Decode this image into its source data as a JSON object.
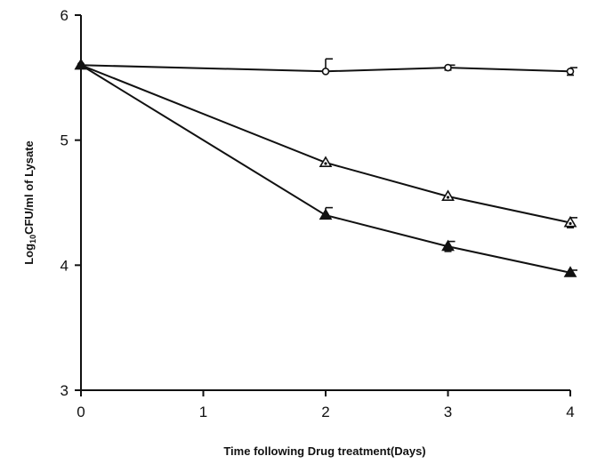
{
  "chart_data": {
    "type": "line",
    "title": "",
    "xlabel": "Time following Drug treatment(Days)",
    "ylabel": "Log10CFU/ml of Lysate",
    "ylabel_parts": {
      "pre": "Log",
      "sub": "10",
      "post": "CFU/ml of Lysate"
    },
    "xlim": [
      0,
      4
    ],
    "ylim": [
      3,
      6
    ],
    "x_ticks": [
      0,
      1,
      2,
      3,
      4
    ],
    "x_tick_labels": [
      "0",
      "1",
      "2",
      "3",
      "4"
    ],
    "y_ticks": [
      3,
      4,
      5,
      6
    ],
    "y_tick_labels": [
      "3",
      "4",
      "5",
      "6"
    ],
    "grid": false,
    "legend": "none",
    "series": [
      {
        "marker": "open-circle",
        "x": [
          0,
          2,
          3,
          4
        ],
        "y": [
          5.6,
          5.55,
          5.58,
          5.55
        ],
        "err_up": [
          0,
          0.1,
          0.02,
          0.03
        ],
        "err_down": [
          0,
          0,
          0.02,
          0.03
        ]
      },
      {
        "marker": "open-triangle",
        "x": [
          0,
          2,
          3,
          4
        ],
        "y": [
          5.6,
          4.82,
          4.55,
          4.34
        ],
        "err_up": [
          0,
          0,
          0,
          0.04
        ],
        "err_down": [
          0,
          0,
          0,
          0.04
        ]
      },
      {
        "marker": "filled-triangle",
        "x": [
          0,
          2,
          3,
          4
        ],
        "y": [
          5.6,
          4.4,
          4.15,
          3.94
        ],
        "err_up": [
          0,
          0.06,
          0.04,
          0.02
        ],
        "err_down": [
          0,
          0,
          0.04,
          0.02
        ]
      }
    ]
  }
}
